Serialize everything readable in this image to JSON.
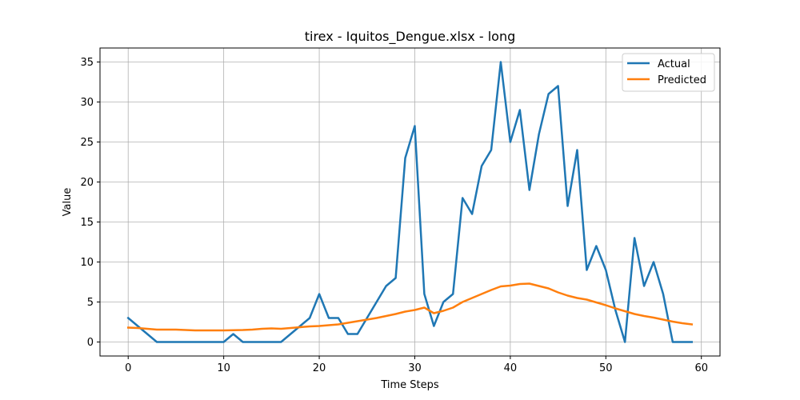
{
  "chart_data": {
    "type": "line",
    "title": "tirex - Iquitos_Dengue.xlsx - long",
    "xlabel": "Time Steps",
    "ylabel": "Value",
    "xlim": [
      -2.95,
      61.95
    ],
    "ylim": [
      -1.75,
      36.75
    ],
    "xticks": [
      0,
      10,
      20,
      30,
      40,
      50,
      60
    ],
    "yticks": [
      0,
      5,
      10,
      15,
      20,
      25,
      30,
      35
    ],
    "grid": true,
    "legend_position": "top-right",
    "x": [
      0,
      1,
      2,
      3,
      4,
      5,
      6,
      7,
      8,
      9,
      10,
      11,
      12,
      13,
      14,
      15,
      16,
      17,
      18,
      19,
      20,
      21,
      22,
      23,
      24,
      25,
      26,
      27,
      28,
      29,
      30,
      31,
      32,
      33,
      34,
      35,
      36,
      37,
      38,
      39,
      40,
      41,
      42,
      43,
      44,
      45,
      46,
      47,
      48,
      49,
      50,
      51,
      52,
      53,
      54,
      55,
      56,
      57,
      58,
      59
    ],
    "series": [
      {
        "name": "Actual",
        "color": "#1f77b4",
        "values": [
          3,
          2,
          1,
          0,
          0,
          0,
          0,
          0,
          0,
          0,
          0,
          1,
          0,
          0,
          0,
          0,
          0,
          1,
          2,
          3,
          6,
          3,
          3,
          1,
          1,
          3,
          5,
          7,
          8,
          23,
          27,
          6,
          2,
          5,
          6,
          18,
          16,
          22,
          24,
          35,
          25,
          29,
          19,
          26,
          31,
          32,
          17,
          24,
          9,
          12,
          9,
          4,
          0,
          13,
          7,
          10,
          6,
          0,
          0,
          0
        ]
      },
      {
        "name": "Predicted",
        "color": "#ff7f0e",
        "values": [
          1.8,
          1.75,
          1.65,
          1.55,
          1.55,
          1.55,
          1.5,
          1.45,
          1.45,
          1.45,
          1.45,
          1.48,
          1.5,
          1.55,
          1.65,
          1.7,
          1.65,
          1.75,
          1.85,
          1.95,
          2.0,
          2.1,
          2.2,
          2.4,
          2.6,
          2.8,
          3.0,
          3.25,
          3.5,
          3.8,
          4.0,
          4.3,
          3.6,
          3.9,
          4.3,
          5.0,
          5.5,
          6.0,
          6.5,
          6.95,
          7.05,
          7.25,
          7.3,
          7.0,
          6.7,
          6.2,
          5.8,
          5.5,
          5.3,
          4.95,
          4.6,
          4.2,
          3.85,
          3.5,
          3.25,
          3.05,
          2.8,
          2.55,
          2.35,
          2.2
        ]
      }
    ]
  }
}
